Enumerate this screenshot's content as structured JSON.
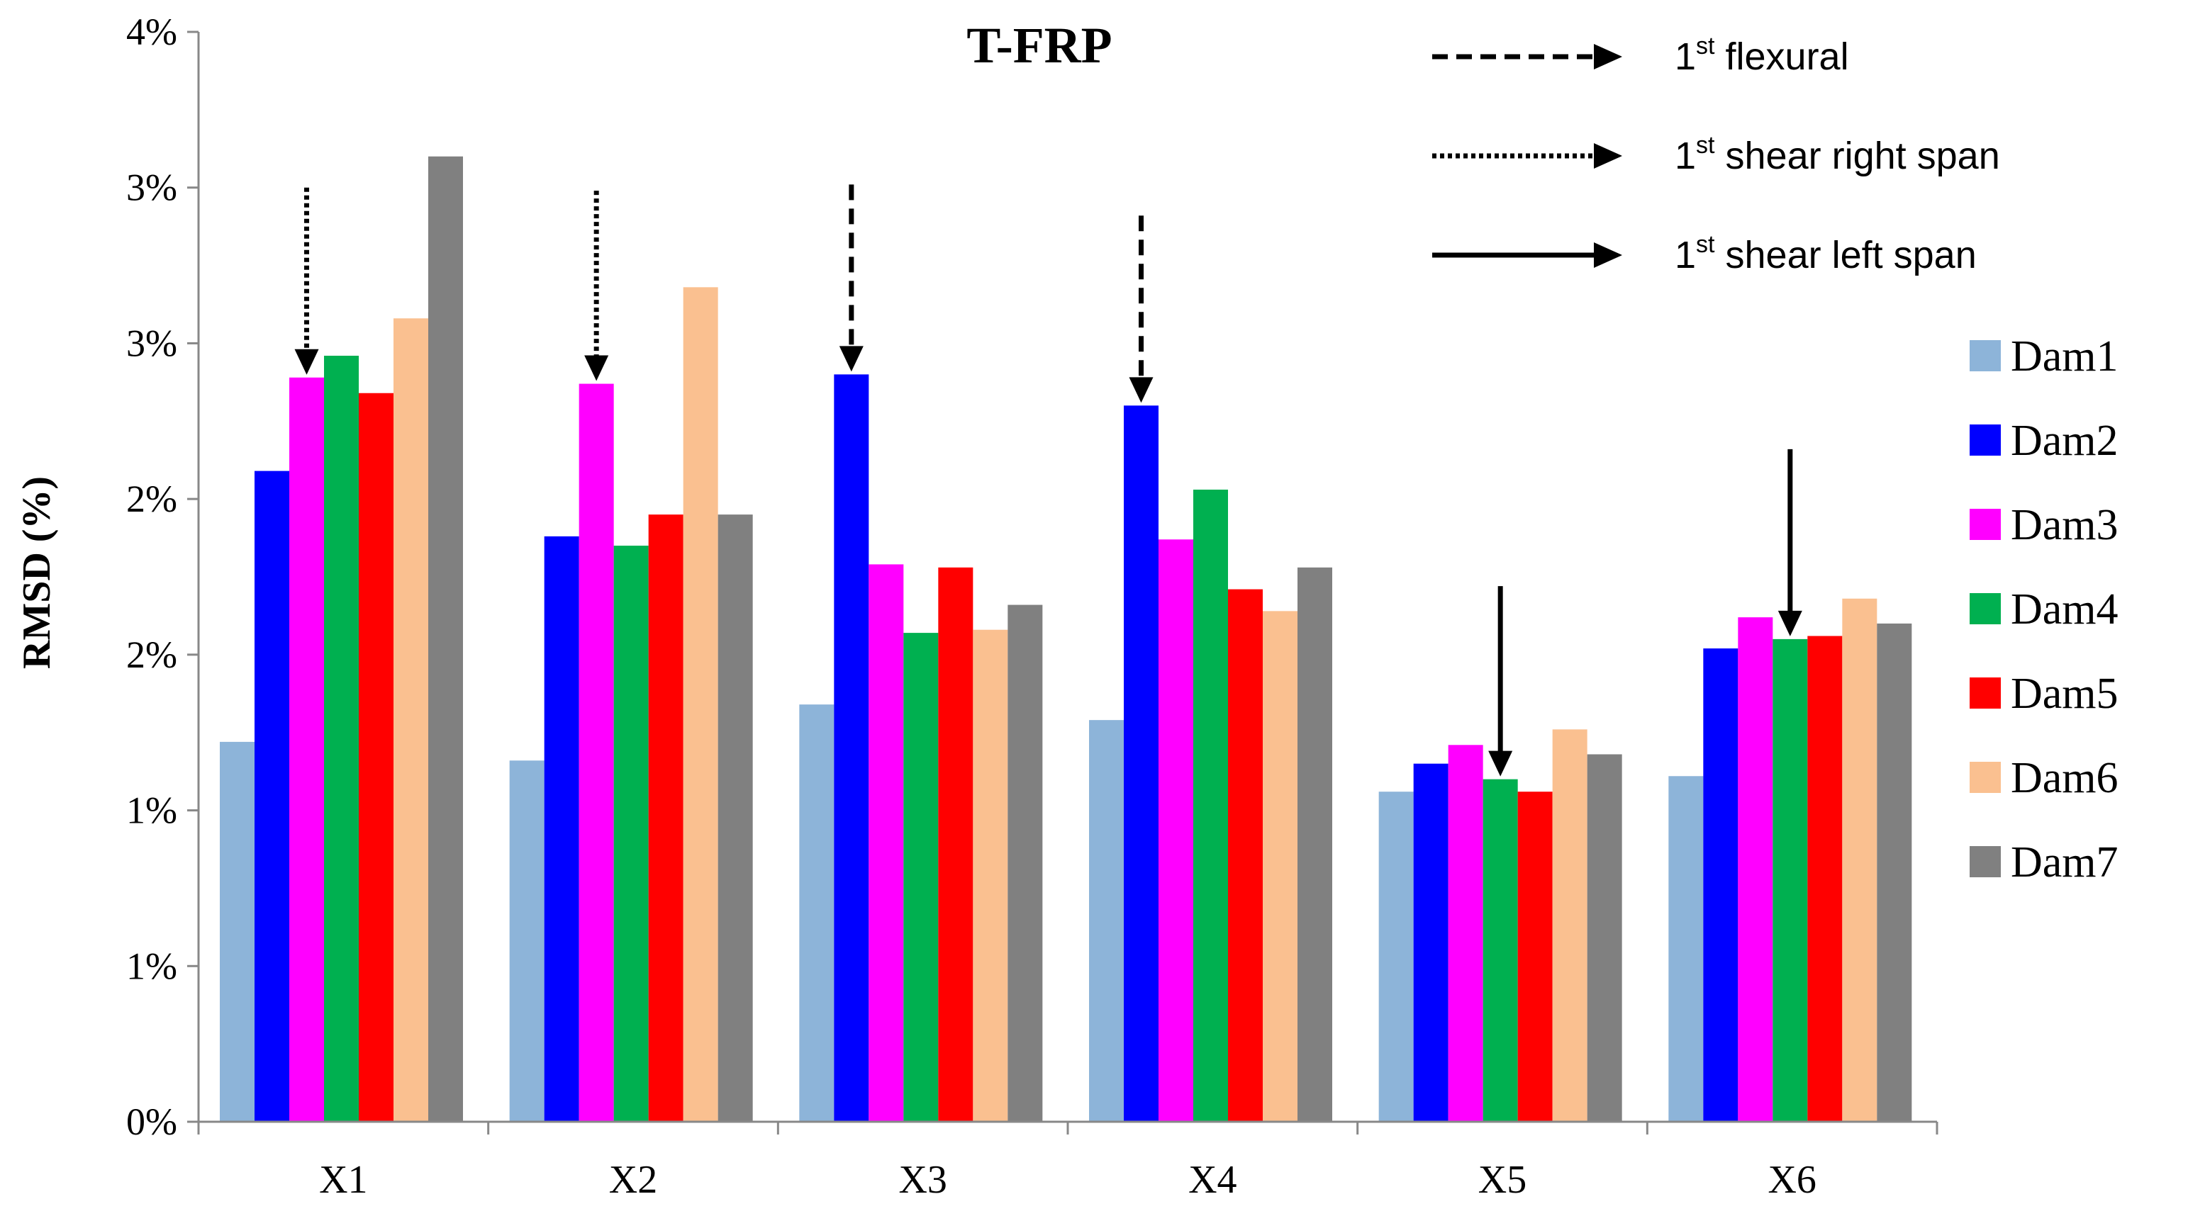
{
  "chart_data": {
    "type": "bar",
    "title": "T-FRP",
    "xlabel": "",
    "ylabel": "RMSD (%)",
    "categories": [
      "X1",
      "X2",
      "X3",
      "X4",
      "X5",
      "X6"
    ],
    "ylim": [
      0,
      3.5
    ],
    "yticks": [
      0,
      0.5,
      1.0,
      1.5,
      2.0,
      2.5,
      3.0,
      3.5
    ],
    "ytick_labels": [
      "0%",
      "1%",
      "1%",
      "2%",
      "2%",
      "3%",
      "3%",
      "4%"
    ],
    "grid": false,
    "legend_position": "right",
    "series": [
      {
        "name": "Dam1",
        "color": "#8db4d9",
        "values": [
          1.22,
          1.16,
          1.34,
          1.29,
          1.06,
          1.11
        ]
      },
      {
        "name": "Dam2",
        "color": "#0000ff",
        "values": [
          2.09,
          1.88,
          2.4,
          2.3,
          1.15,
          1.52
        ]
      },
      {
        "name": "Dam3",
        "color": "#ff00ff",
        "values": [
          2.39,
          2.37,
          1.79,
          1.87,
          1.21,
          1.62
        ]
      },
      {
        "name": "Dam4",
        "color": "#00b050",
        "values": [
          2.46,
          1.85,
          1.57,
          2.03,
          1.1,
          1.55
        ]
      },
      {
        "name": "Dam5",
        "color": "#ff0000",
        "values": [
          2.34,
          1.95,
          1.78,
          1.71,
          1.06,
          1.56
        ]
      },
      {
        "name": "Dam6",
        "color": "#fac090",
        "values": [
          2.58,
          2.68,
          1.58,
          1.64,
          1.26,
          1.68
        ]
      },
      {
        "name": "Dam7",
        "color": "#808080",
        "values": [
          3.1,
          1.95,
          1.66,
          1.78,
          1.18,
          1.6
        ]
      }
    ],
    "annotations": [
      {
        "category": "X1",
        "series": "Dam3",
        "style": "dotted",
        "from_value": 3.0
      },
      {
        "category": "X2",
        "series": "Dam3",
        "style": "dotted",
        "from_value": 2.99
      },
      {
        "category": "X3",
        "series": "Dam2",
        "style": "dashed",
        "from_value": 3.01
      },
      {
        "category": "X4",
        "series": "Dam2",
        "style": "dashed",
        "from_value": 2.91
      },
      {
        "category": "X5",
        "series": "Dam4",
        "style": "solid",
        "from_value": 1.72
      },
      {
        "category": "X6",
        "series": "Dam4",
        "style": "solid",
        "from_value": 2.16
      }
    ],
    "arrow_legend": [
      {
        "style": "dashed",
        "ordinal": "1",
        "sup": "st",
        "label": " flexural"
      },
      {
        "style": "dotted",
        "ordinal": "1",
        "sup": "st",
        "label": " shear right span"
      },
      {
        "style": "solid",
        "ordinal": "1",
        "sup": "st",
        "label": " shear left span"
      }
    ]
  }
}
